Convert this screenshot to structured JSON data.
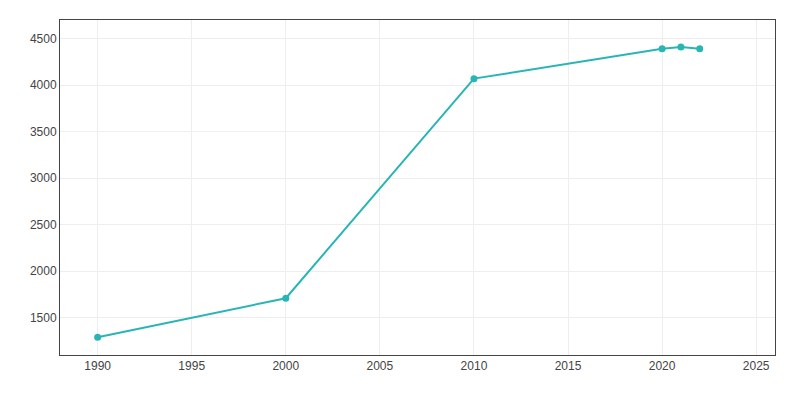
{
  "chart_data": {
    "type": "line",
    "x": [
      1990,
      2000,
      2010,
      2020,
      2021,
      2022
    ],
    "values": [
      1290,
      1710,
      4070,
      4390,
      4410,
      4390
    ],
    "color": "#2ab5b5",
    "marker": "circle",
    "xlim": [
      1988,
      2026
    ],
    "ylim": [
      1100,
      4700
    ],
    "xticks": [
      1990,
      1995,
      2000,
      2005,
      2010,
      2015,
      2020,
      2025
    ],
    "yticks": [
      1500,
      2000,
      2500,
      3000,
      3500,
      4000,
      4500
    ],
    "grid": true
  }
}
